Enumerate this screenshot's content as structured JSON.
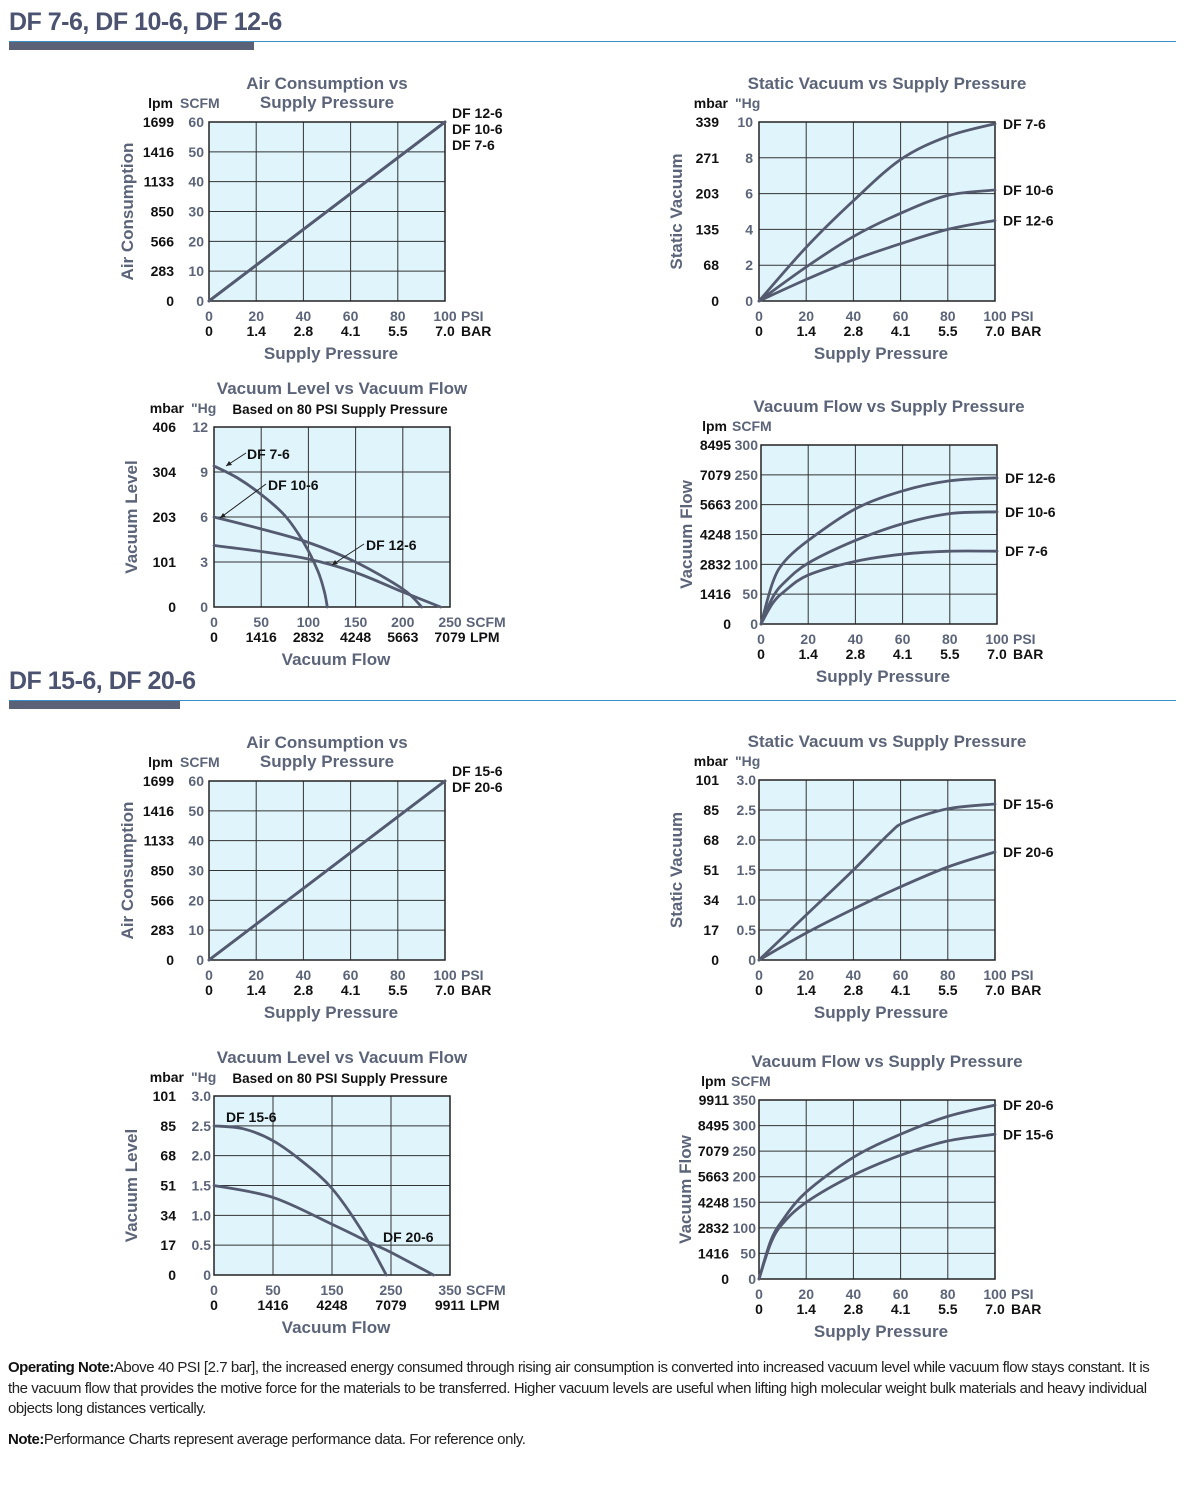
{
  "sections": [
    {
      "heading": "DF 7-6, DF 10-6, DF 12-6"
    },
    {
      "heading": "DF 15-6, DF 20-6"
    }
  ],
  "colors": {
    "heading": "#4b5370",
    "rule": "#3b8fc7",
    "plot_bg": "#e0f4fc",
    "curve": "#545b70",
    "axis_text": "#5b6479"
  },
  "notes": {
    "operating_label": "Operating Note:",
    "operating_text": "Above 40 PSI [2.7 bar], the increased energy consumed through rising air consumption is converted into increased vacuum level while vacuum flow stays constant. It is the vacuum flow that provides the motive force for the materials to be transferred. Higher vacuum levels are useful when lifting high molecular weight bulk materials and heavy individual objects long distances vertically.",
    "note_label": "Note:",
    "note_text": "Performance Charts represent average performance data. For reference only."
  },
  "chart_data": [
    {
      "type": "line",
      "title": "Air Consumption vs\nSupply Pressure",
      "xlabel": "Supply Pressure",
      "ylabel": "Air Consumption",
      "x_ticks": [
        0,
        20,
        40,
        60,
        80,
        100
      ],
      "x_unit": "PSI",
      "x_ticks_secondary": [
        "0",
        "1.4",
        "2.8",
        "4.1",
        "5.5",
        "7.0"
      ],
      "x_unit_secondary": "BAR",
      "y_ticks": [
        0,
        10,
        20,
        30,
        40,
        50,
        60
      ],
      "y_unit": "SCFM",
      "y_ticks_secondary": [
        "0",
        "283",
        "566",
        "850",
        "1133",
        "1416",
        "1699"
      ],
      "y_unit_secondary": "lpm",
      "grid": true,
      "series": [
        {
          "name": "DF 12-6",
          "x": [
            0,
            100
          ],
          "y": [
            0,
            60
          ]
        },
        {
          "name": "DF 10-6",
          "x": [
            0,
            100
          ],
          "y": [
            0,
            60
          ]
        },
        {
          "name": "DF 7-6",
          "x": [
            0,
            100
          ],
          "y": [
            0,
            60
          ]
        }
      ]
    },
    {
      "type": "line",
      "title": "Static Vacuum vs Supply Pressure",
      "xlabel": "Supply Pressure",
      "ylabel": "Static Vacuum",
      "x_ticks": [
        0,
        20,
        40,
        60,
        80,
        100
      ],
      "x_unit": "PSI",
      "x_ticks_secondary": [
        "0",
        "1.4",
        "2.8",
        "4.1",
        "5.5",
        "7.0"
      ],
      "x_unit_secondary": "BAR",
      "y_ticks": [
        0,
        2,
        4,
        6,
        8,
        10
      ],
      "y_unit": "\"Hg",
      "y_ticks_secondary": [
        "0",
        "68",
        "135",
        "203",
        "271",
        "339"
      ],
      "y_unit_secondary": "mbar",
      "grid": true,
      "series": [
        {
          "name": "DF 7-6",
          "x": [
            0,
            20,
            40,
            60,
            80,
            100
          ],
          "y": [
            0,
            3.0,
            5.6,
            7.9,
            9.2,
            9.9
          ]
        },
        {
          "name": "DF 10-6",
          "x": [
            0,
            20,
            40,
            60,
            80,
            100
          ],
          "y": [
            0,
            1.9,
            3.6,
            4.9,
            5.9,
            6.2
          ]
        },
        {
          "name": "DF 12-6",
          "x": [
            0,
            20,
            40,
            60,
            80,
            100
          ],
          "y": [
            0,
            1.2,
            2.3,
            3.2,
            4.0,
            4.5
          ]
        }
      ]
    },
    {
      "type": "line",
      "title": "Vacuum Level vs Vacuum Flow",
      "subtitle": "Based on 80 PSI Supply Pressure",
      "xlabel": "Vacuum Flow",
      "ylabel": "Vacuum Level",
      "x_ticks": [
        0,
        50,
        100,
        150,
        200,
        250
      ],
      "x_unit": "SCFM",
      "x_ticks_secondary": [
        "0",
        "1416",
        "2832",
        "4248",
        "5663",
        "7079"
      ],
      "x_unit_secondary": "LPM",
      "y_ticks": [
        0,
        3,
        6,
        9,
        12
      ],
      "y_unit": "\"Hg",
      "y_ticks_secondary": [
        "0",
        "101",
        "203",
        "304",
        "406"
      ],
      "y_unit_secondary": "mbar",
      "grid": true,
      "series": [
        {
          "name": "DF 7-6",
          "x": [
            0,
            25,
            50,
            75,
            95,
            110,
            117,
            120
          ],
          "y": [
            9.4,
            8.6,
            7.5,
            6.1,
            4.3,
            2.4,
            1.0,
            0
          ]
        },
        {
          "name": "DF 10-6",
          "x": [
            0,
            50,
            100,
            150,
            200,
            220
          ],
          "y": [
            6.0,
            5.2,
            4.3,
            3.0,
            1.2,
            0
          ]
        },
        {
          "name": "DF 12-6",
          "x": [
            0,
            50,
            100,
            150,
            200,
            240
          ],
          "y": [
            4.1,
            3.7,
            3.2,
            2.3,
            1.0,
            0
          ]
        }
      ]
    },
    {
      "type": "line",
      "title": "Vacuum Flow vs Supply Pressure",
      "xlabel": "Supply Pressure",
      "ylabel": "Vacuum Flow",
      "x_ticks": [
        0,
        20,
        40,
        60,
        80,
        100
      ],
      "x_unit": "PSI",
      "x_ticks_secondary": [
        "0",
        "1.4",
        "2.8",
        "4.1",
        "5.5",
        "7.0"
      ],
      "x_unit_secondary": "BAR",
      "y_ticks": [
        0,
        50,
        100,
        150,
        200,
        250,
        300
      ],
      "y_unit": "SCFM",
      "y_ticks_secondary": [
        "0",
        "1416",
        "2832",
        "4248",
        "5663",
        "7079",
        "8495"
      ],
      "y_unit_secondary": "lpm",
      "grid": true,
      "series": [
        {
          "name": "DF 12-6",
          "x": [
            0,
            5,
            10,
            20,
            40,
            60,
            80,
            100
          ],
          "y": [
            0,
            70,
            105,
            140,
            193,
            223,
            240,
            245
          ]
        },
        {
          "name": "DF 10-6",
          "x": [
            0,
            5,
            10,
            20,
            40,
            60,
            80,
            100
          ],
          "y": [
            0,
            45,
            70,
            102,
            140,
            168,
            185,
            188
          ]
        },
        {
          "name": "DF 7-6",
          "x": [
            0,
            5,
            10,
            20,
            40,
            60,
            80,
            100
          ],
          "y": [
            0,
            35,
            55,
            82,
            105,
            117,
            122,
            122
          ]
        }
      ]
    },
    {
      "type": "line",
      "title": "Air Consumption vs\nSupply Pressure",
      "xlabel": "Supply Pressure",
      "ylabel": "Air Consumption",
      "x_ticks": [
        0,
        20,
        40,
        60,
        80,
        100
      ],
      "x_unit": "PSI",
      "x_ticks_secondary": [
        "0",
        "1.4",
        "2.8",
        "4.1",
        "5.5",
        "7.0"
      ],
      "x_unit_secondary": "BAR",
      "y_ticks": [
        0,
        10,
        20,
        30,
        40,
        50,
        60
      ],
      "y_unit": "SCFM",
      "y_ticks_secondary": [
        "0",
        "283",
        "566",
        "850",
        "1133",
        "1416",
        "1699"
      ],
      "y_unit_secondary": "lpm",
      "grid": true,
      "series": [
        {
          "name": "DF 15-6",
          "x": [
            0,
            100
          ],
          "y": [
            0,
            60
          ]
        },
        {
          "name": "DF 20-6",
          "x": [
            0,
            100
          ],
          "y": [
            0,
            60
          ]
        }
      ]
    },
    {
      "type": "line",
      "title": "Static Vacuum vs Supply Pressure",
      "xlabel": "Supply Pressure",
      "ylabel": "Static Vacuum",
      "x_ticks": [
        0,
        20,
        40,
        60,
        80,
        100
      ],
      "x_unit": "PSI",
      "x_ticks_secondary": [
        "0",
        "1.4",
        "2.8",
        "4.1",
        "5.5",
        "7.0"
      ],
      "x_unit_secondary": "BAR",
      "y_ticks": [
        0,
        0.5,
        1.0,
        1.5,
        2.0,
        2.5,
        3.0
      ],
      "y_tick_labels": [
        "0",
        "0.5",
        "1.0",
        "1.5",
        "2.0",
        "2.5",
        "3.0"
      ],
      "y_unit": "\"Hg",
      "y_ticks_secondary": [
        "0",
        "17",
        "34",
        "51",
        "68",
        "85",
        "101"
      ],
      "y_unit_secondary": "mbar",
      "grid": true,
      "series": [
        {
          "name": "DF 15-6",
          "x": [
            0,
            20,
            40,
            55,
            62,
            80,
            100
          ],
          "y": [
            0,
            0.75,
            1.5,
            2.1,
            2.3,
            2.52,
            2.6
          ]
        },
        {
          "name": "DF 20-6",
          "x": [
            0,
            20,
            40,
            60,
            80,
            100
          ],
          "y": [
            0,
            0.45,
            0.85,
            1.22,
            1.55,
            1.8
          ]
        }
      ]
    },
    {
      "type": "line",
      "title": "Vacuum Level vs Vacuum Flow",
      "subtitle": "Based on 80 PSI Supply Pressure",
      "xlabel": "Vacuum Flow",
      "ylabel": "Vacuum Level",
      "x_ticks": [
        0,
        50,
        150,
        250,
        350
      ],
      "x_unit": "SCFM",
      "x_ticks_secondary": [
        "0",
        "1416",
        "4248",
        "7079",
        "9911"
      ],
      "x_unit_secondary": "LPM",
      "y_ticks": [
        0,
        0.5,
        1.0,
        1.5,
        2.0,
        2.5,
        3.0
      ],
      "y_tick_labels": [
        "0",
        "0.5",
        "1.0",
        "1.5",
        "2.0",
        "2.5",
        "3.0"
      ],
      "y_unit": "\"Hg",
      "y_ticks_secondary": [
        "0",
        "17",
        "34",
        "51",
        "68",
        "85",
        "101"
      ],
      "y_unit_secondary": "mbar",
      "grid": true,
      "series": [
        {
          "name": "DF 15-6",
          "x": [
            0,
            25,
            50,
            100,
            150,
            200,
            242
          ],
          "y": [
            2.5,
            2.45,
            2.25,
            1.9,
            1.45,
            0.75,
            0
          ]
        },
        {
          "name": "DF 20-6",
          "x": [
            0,
            50,
            150,
            217,
            250,
            322
          ],
          "y": [
            1.5,
            1.3,
            0.85,
            0.53,
            0.38,
            0
          ]
        }
      ]
    },
    {
      "type": "line",
      "title": "Vacuum Flow vs Supply Pressure",
      "xlabel": "Supply Pressure",
      "ylabel": "Vacuum Flow",
      "x_ticks": [
        0,
        20,
        40,
        60,
        80,
        100
      ],
      "x_unit": "PSI",
      "x_ticks_secondary": [
        "0",
        "1.4",
        "2.8",
        "4.1",
        "5.5",
        "7.0"
      ],
      "x_unit_secondary": "BAR",
      "y_ticks": [
        0,
        50,
        100,
        150,
        200,
        250,
        300,
        350
      ],
      "y_unit": "SCFM",
      "y_ticks_secondary": [
        "0",
        "1416",
        "2832",
        "4248",
        "5663",
        "7079",
        "8495",
        "9911"
      ],
      "y_unit_secondary": "lpm",
      "grid": true,
      "series": [
        {
          "name": "DF 20-6",
          "x": [
            0,
            5,
            10,
            20,
            40,
            60,
            80,
            100
          ],
          "y": [
            0,
            75,
            115,
            170,
            238,
            283,
            318,
            340
          ]
        },
        {
          "name": "DF 15-6",
          "x": [
            0,
            5,
            10,
            20,
            40,
            60,
            80,
            100
          ],
          "y": [
            0,
            70,
            108,
            150,
            203,
            242,
            270,
            283
          ]
        }
      ]
    }
  ]
}
